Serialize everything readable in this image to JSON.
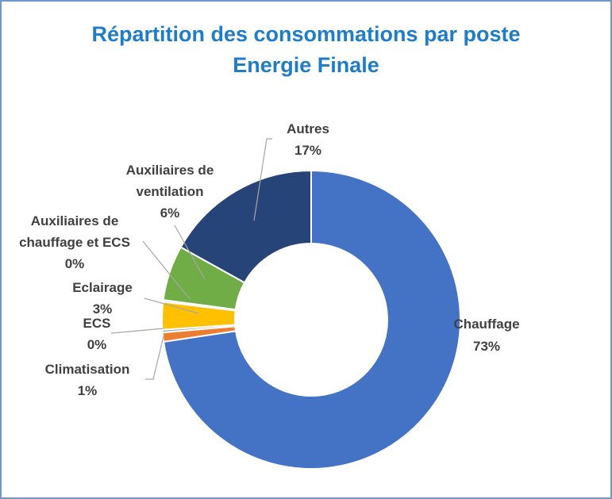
{
  "header": {
    "title_line1": "Répartition des consommations par poste",
    "title_line2": "Energie Finale"
  },
  "chart_data": {
    "type": "pie",
    "style": "donut",
    "title": "Répartition des consommations par poste Energie Finale",
    "legend": "none (data labels with leader lines)",
    "slices": [
      {
        "label": "Chauffage",
        "value": 73,
        "display": "73%",
        "color": "#4472c4"
      },
      {
        "label": "Climatisation",
        "value": 1,
        "display": "1%",
        "color": "#ed7d31"
      },
      {
        "label": "ECS",
        "value": 0.3,
        "display": "0%",
        "color": "#a5a5a5"
      },
      {
        "label": "Eclairage",
        "value": 3,
        "display": "3%",
        "color": "#ffc000"
      },
      {
        "label": "Auxiliaires de chauffage et ECS",
        "value": 0.2,
        "display": "0%",
        "color": "#5b9bd5"
      },
      {
        "label": "Auxiliaires de ventilation",
        "value": 6,
        "display": "6%",
        "color": "#70ad47"
      },
      {
        "label": "Autres",
        "value": 17,
        "display": "17%",
        "color": "#264478"
      }
    ]
  }
}
